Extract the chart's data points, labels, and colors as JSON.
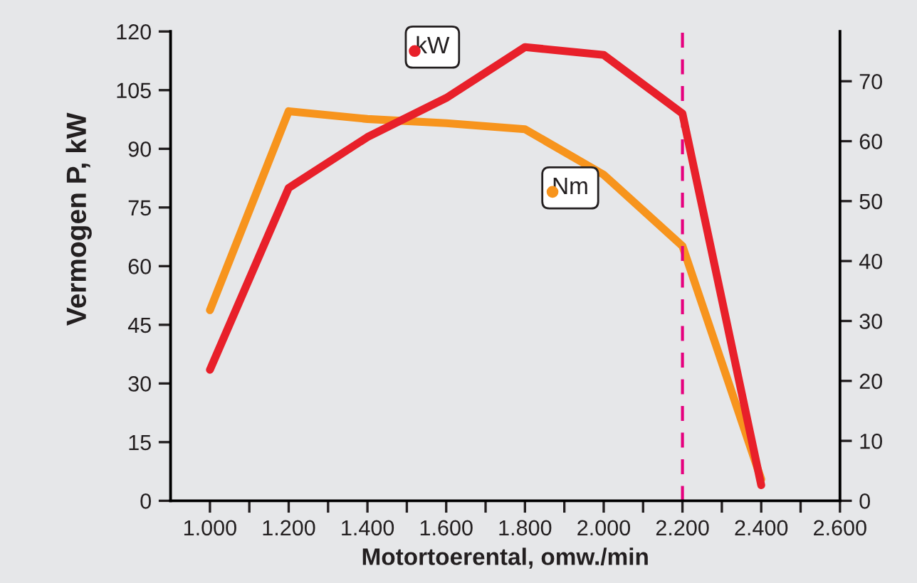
{
  "chart_data": {
    "type": "line",
    "xlabel": "Motortoerental, omw./min",
    "ylabel": "Vermogen P, kW",
    "x": [
      1000,
      1200,
      1400,
      1600,
      1800,
      2000,
      2200,
      2400
    ],
    "series": [
      {
        "name": "kW",
        "color": "#e8202a",
        "values": [
          33.5,
          80,
          93,
          103,
          116,
          114,
          99,
          4
        ]
      },
      {
        "name": "Nm",
        "color": "#f7941d",
        "axis": "y2",
        "values": [
          31.8,
          65,
          63.7,
          63,
          62,
          54.4,
          42.5,
          3.6
        ]
      }
    ],
    "xlim": [
      900,
      2600
    ],
    "xticks": [
      {
        "value": 1000,
        "label": "1.000"
      },
      {
        "value": 1100,
        "label": null
      },
      {
        "value": 1200,
        "label": "1.200"
      },
      {
        "value": 1300,
        "label": null
      },
      {
        "value": 1400,
        "label": "1.400"
      },
      {
        "value": 1500,
        "label": null
      },
      {
        "value": 1600,
        "label": "1.600"
      },
      {
        "value": 1700,
        "label": null
      },
      {
        "value": 1800,
        "label": "1.800"
      },
      {
        "value": 1900,
        "label": null
      },
      {
        "value": 2000,
        "label": "2.000"
      },
      {
        "value": 2100,
        "label": null
      },
      {
        "value": 2200,
        "label": "2.200"
      },
      {
        "value": 2300,
        "label": null
      },
      {
        "value": 2400,
        "label": "2.400"
      },
      {
        "value": 2500,
        "label": null
      },
      {
        "value": 2600,
        "label": "2.600"
      }
    ],
    "ylim": [
      0,
      120
    ],
    "yticks": [
      0,
      15,
      30,
      45,
      60,
      75,
      90,
      105,
      120
    ],
    "y2lim": [
      0,
      78.3
    ],
    "y2ticks": [
      0,
      10,
      20,
      30,
      40,
      50,
      60,
      70
    ],
    "ref_lines": [
      {
        "axis": "x",
        "value": 2200,
        "color": "#e6007e",
        "line_style": "dashed"
      }
    ],
    "grid": false,
    "legend": "top",
    "marker": "none",
    "line_style": "solid"
  }
}
